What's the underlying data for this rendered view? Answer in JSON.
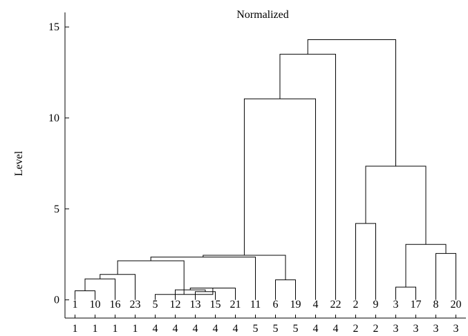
{
  "chart_data": {
    "type": "dendrogram",
    "title": "Normalized",
    "ylabel": "Level",
    "xlabel": "",
    "ylim": [
      -1.0,
      15.8
    ],
    "yticks": [
      0,
      5,
      10,
      15
    ],
    "ytick_labels": [
      "0",
      "5",
      "10",
      "15"
    ],
    "leaves": [
      "1",
      "10",
      "16",
      "23",
      "5",
      "12",
      "13",
      "15",
      "21",
      "11",
      "6",
      "19",
      "4",
      "22",
      "2",
      "9",
      "3",
      "17",
      "8",
      "20"
    ],
    "leaf_groups": [
      "1",
      "1",
      "1",
      "1",
      "4",
      "4",
      "4",
      "4",
      "4",
      "5",
      "5",
      "5",
      "4",
      "4",
      "2",
      "2",
      "3",
      "3",
      "3",
      "3"
    ],
    "merges": [
      {
        "left": "L0",
        "right": "L1",
        "height": 0.5
      },
      {
        "left": "M0",
        "right": "L2",
        "height": 1.15
      },
      {
        "left": "M1",
        "right": "L3",
        "height": 1.4
      },
      {
        "left": "L6",
        "right": "L7",
        "height": 0.45
      },
      {
        "left": "L5",
        "right": "M3",
        "height": 0.55
      },
      {
        "left": "M4",
        "right": "L8",
        "height": 0.65
      },
      {
        "left": "L4",
        "right": "M5",
        "height": 0.3
      },
      {
        "left": "M2",
        "right": "M6",
        "height": 2.15
      },
      {
        "left": "M7",
        "right": "L9",
        "height": 2.35
      },
      {
        "left": "L10",
        "right": "L11",
        "height": 1.1
      },
      {
        "left": "M8",
        "right": "M9",
        "height": 2.45
      },
      {
        "left": "M10",
        "right": "L12",
        "height": 11.05
      },
      {
        "left": "M11",
        "right": "L13",
        "height": 13.5
      },
      {
        "left": "L14",
        "right": "L15",
        "height": 4.2
      },
      {
        "left": "L16",
        "right": "L17",
        "height": 0.7
      },
      {
        "left": "L18",
        "right": "L19",
        "height": 2.55
      },
      {
        "left": "M14",
        "right": "M15",
        "height": 3.05
      },
      {
        "left": "M13",
        "right": "M16",
        "height": 7.35
      },
      {
        "left": "M12",
        "right": "M17",
        "height": 14.3
      }
    ]
  }
}
